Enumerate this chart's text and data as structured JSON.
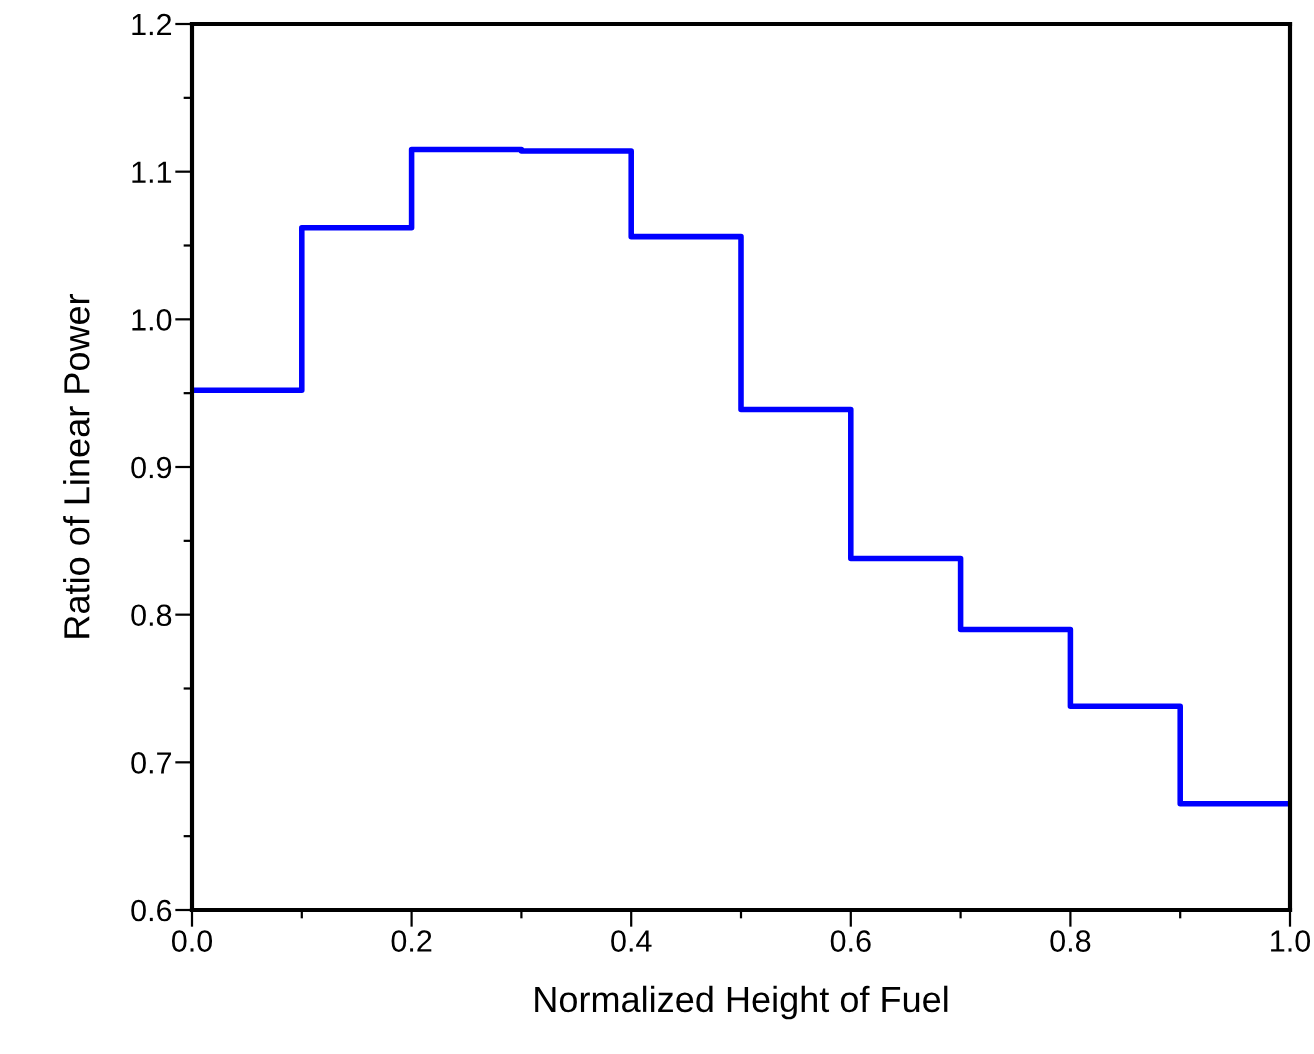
{
  "chart_data": {
    "type": "step",
    "xlabel": "Normalized Height of Fuel",
    "ylabel": "Ratio of Linear Power",
    "x": [
      0.0,
      0.1,
      0.2,
      0.3,
      0.4,
      0.5,
      0.6,
      0.7,
      0.8,
      0.9,
      1.0
    ],
    "series": [
      {
        "color": "#0000ff",
        "values": [
          0.952,
          1.062,
          1.115,
          1.114,
          1.056,
          0.939,
          0.838,
          0.79,
          0.738,
          0.672,
          0.672
        ]
      }
    ],
    "xlim": [
      0.0,
      1.0
    ],
    "ylim": [
      0.6,
      1.2
    ],
    "xticks": [
      {
        "value": 0.0,
        "label": "0.0"
      },
      {
        "value": 0.1,
        "label": null
      },
      {
        "value": 0.2,
        "label": "0.2"
      },
      {
        "value": 0.3,
        "label": null
      },
      {
        "value": 0.4,
        "label": "0.4"
      },
      {
        "value": 0.5,
        "label": null
      },
      {
        "value": 0.6,
        "label": "0.6"
      },
      {
        "value": 0.7,
        "label": null
      },
      {
        "value": 0.8,
        "label": "0.8"
      },
      {
        "value": 0.9,
        "label": null
      },
      {
        "value": 1.0,
        "label": "1.0"
      }
    ],
    "yticks": [
      {
        "value": 0.6,
        "label": "0.6"
      },
      {
        "value": 0.65,
        "label": null
      },
      {
        "value": 0.7,
        "label": "0.7"
      },
      {
        "value": 0.75,
        "label": null
      },
      {
        "value": 0.8,
        "label": "0.8"
      },
      {
        "value": 0.85,
        "label": null
      },
      {
        "value": 0.9,
        "label": "0.9"
      },
      {
        "value": 0.95,
        "label": null
      },
      {
        "value": 1.0,
        "label": "1.0"
      },
      {
        "value": 1.05,
        "label": null
      },
      {
        "value": 1.1,
        "label": "1.1"
      },
      {
        "value": 1.15,
        "label": null
      },
      {
        "value": 1.2,
        "label": "1.2"
      }
    ],
    "grid": false,
    "legend": false
  }
}
